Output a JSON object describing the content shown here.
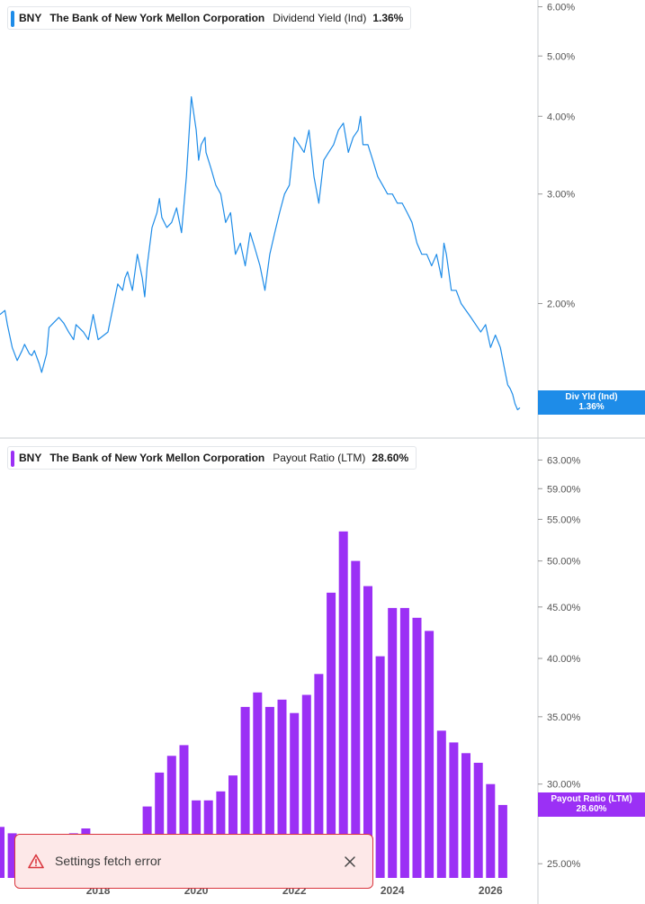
{
  "colors": {
    "yield": "#1e8ce8",
    "payout": "#9b30f5",
    "grid": "#d5d9de",
    "axis_text": "#555555"
  },
  "icons": {
    "toast_icon": "warning-triangle-icon",
    "close_icon": "close-icon"
  },
  "panels": [
    {
      "ticker": "BNY",
      "company": "The Bank of New York Mellon Corporation",
      "metric": "Dividend Yield (Ind)",
      "value": "1.36%",
      "badge_label": "Div Yld (Ind)",
      "badge_value": "1.36%"
    },
    {
      "ticker": "BNY",
      "company": "The Bank of New York Mellon Corporation",
      "metric": "Payout Ratio (LTM)",
      "value": "28.60%",
      "badge_label": "Payout Ratio (LTM)",
      "badge_value": "28.60%"
    }
  ],
  "toast": {
    "message": "Settings fetch error"
  },
  "chart_data": [
    {
      "type": "line",
      "scale": "log",
      "y_ticks": [
        "6.00%",
        "5.00%",
        "4.00%",
        "3.00%",
        "2.00%"
      ],
      "y_tick_values": [
        6,
        5,
        4,
        3,
        2
      ],
      "ylim": [
        1.33,
        6.05
      ],
      "xlim": [
        2016.0,
        2026.6
      ],
      "series": [
        {
          "values_x": [
            2016.0,
            2016.1,
            2016.15,
            2016.25,
            2016.35,
            2016.45,
            2016.5,
            2016.6,
            2016.65,
            2016.7,
            2016.8,
            2016.85,
            2016.95,
            2017.0,
            2017.2,
            2017.3,
            2017.4,
            2017.5,
            2017.55,
            2017.7,
            2017.8,
            2017.9,
            2018.0,
            2018.2,
            2018.4,
            2018.5,
            2018.55,
            2018.6,
            2018.7,
            2018.8,
            2018.9,
            2018.95,
            2019.0,
            2019.1,
            2019.2,
            2019.25,
            2019.3,
            2019.4,
            2019.5,
            2019.6,
            2019.7,
            2019.8,
            2019.9,
            2020.0,
            2020.05,
            2020.1,
            2020.18,
            2020.2,
            2020.3,
            2020.4,
            2020.5,
            2020.6,
            2020.7,
            2020.8,
            2020.9,
            2021.0,
            2021.1,
            2021.2,
            2021.3,
            2021.4,
            2021.5,
            2021.6,
            2021.7,
            2021.8,
            2021.9,
            2022.0,
            2022.1,
            2022.2,
            2022.3,
            2022.4,
            2022.5,
            2022.6,
            2022.7,
            2022.8,
            2022.9,
            2023.0,
            2023.1,
            2023.15,
            2023.2,
            2023.3,
            2023.35,
            2023.4,
            2023.5,
            2023.6,
            2023.7,
            2023.8,
            2023.9,
            2024.0,
            2024.1,
            2024.2,
            2024.3,
            2024.4,
            2024.5,
            2024.6,
            2024.7,
            2024.8,
            2024.9,
            2025.0,
            2025.05,
            2025.1,
            2025.2,
            2025.3,
            2025.4,
            2025.5,
            2025.6,
            2025.7,
            2025.8,
            2025.9,
            2026.0,
            2026.1,
            2026.2,
            2026.3,
            2026.35,
            2026.4,
            2026.45,
            2026.5,
            2026.55,
            2026.6
          ],
          "values_y": [
            1.92,
            1.95,
            1.85,
            1.7,
            1.62,
            1.68,
            1.72,
            1.66,
            1.65,
            1.68,
            1.6,
            1.55,
            1.66,
            1.83,
            1.9,
            1.86,
            1.8,
            1.75,
            1.85,
            1.8,
            1.75,
            1.92,
            1.75,
            1.8,
            2.15,
            2.1,
            2.2,
            2.25,
            2.1,
            2.4,
            2.2,
            2.05,
            2.3,
            2.65,
            2.8,
            2.95,
            2.75,
            2.65,
            2.7,
            2.85,
            2.6,
            3.2,
            4.3,
            3.8,
            3.4,
            3.6,
            3.7,
            3.5,
            3.3,
            3.1,
            3.0,
            2.7,
            2.8,
            2.4,
            2.5,
            2.3,
            2.6,
            2.45,
            2.3,
            2.1,
            2.4,
            2.6,
            2.8,
            3.0,
            3.1,
            3.7,
            3.6,
            3.5,
            3.8,
            3.2,
            2.9,
            3.4,
            3.5,
            3.6,
            3.8,
            3.9,
            3.5,
            3.6,
            3.7,
            3.8,
            4.0,
            3.6,
            3.6,
            3.4,
            3.2,
            3.1,
            3.0,
            3.0,
            2.9,
            2.9,
            2.8,
            2.7,
            2.5,
            2.4,
            2.4,
            2.3,
            2.4,
            2.2,
            2.5,
            2.4,
            2.1,
            2.1,
            2.0,
            1.95,
            1.9,
            1.85,
            1.8,
            1.85,
            1.7,
            1.78,
            1.7,
            1.55,
            1.48,
            1.46,
            1.43,
            1.38,
            1.35,
            1.36
          ]
        }
      ]
    },
    {
      "type": "bar",
      "scale": "log",
      "y_ticks": [
        "63.00%",
        "59.00%",
        "55.00%",
        "50.00%",
        "45.00%",
        "40.00%",
        "35.00%",
        "30.00%",
        "25.00%"
      ],
      "y_tick_values": [
        63,
        59,
        55,
        50,
        45,
        40,
        35,
        30,
        25
      ],
      "ylim": [
        24.2,
        64.5
      ],
      "xlim": [
        2016.0,
        2026.6
      ],
      "x_ticks": [
        "2018",
        "2020",
        "2022",
        "2024",
        "2026"
      ],
      "x_tick_values": [
        2018,
        2020,
        2022,
        2024,
        2026
      ],
      "x": [
        2016.0,
        2016.25,
        2016.5,
        2016.75,
        2017.0,
        2017.25,
        2017.5,
        2017.75,
        2018.0,
        2018.25,
        2018.5,
        2018.75,
        2019.0,
        2019.25,
        2019.5,
        2019.75,
        2020.0,
        2020.25,
        2020.5,
        2020.75,
        2021.0,
        2021.25,
        2021.5,
        2021.75,
        2022.0,
        2022.25,
        2022.5,
        2022.75,
        2023.0,
        2023.25,
        2023.5,
        2023.75,
        2024.0,
        2024.25,
        2024.5,
        2024.75,
        2025.0,
        2025.25,
        2025.5,
        2025.75,
        2026.0,
        2026.25
      ],
      "values": [
        27.2,
        26.8,
        26.3,
        25.8,
        26.0,
        26.2,
        26.8,
        27.1,
        25.8,
        25.5,
        25.3,
        25.8,
        28.5,
        30.8,
        32.0,
        32.8,
        28.9,
        28.9,
        29.5,
        30.6,
        35.8,
        37.0,
        35.8,
        36.4,
        35.3,
        36.8,
        38.6,
        46.5,
        53.5,
        50.0,
        47.2,
        40.2,
        44.9,
        44.9,
        43.9,
        42.6,
        33.9,
        33.0,
        32.2,
        31.5,
        30.0,
        28.6
      ]
    }
  ]
}
